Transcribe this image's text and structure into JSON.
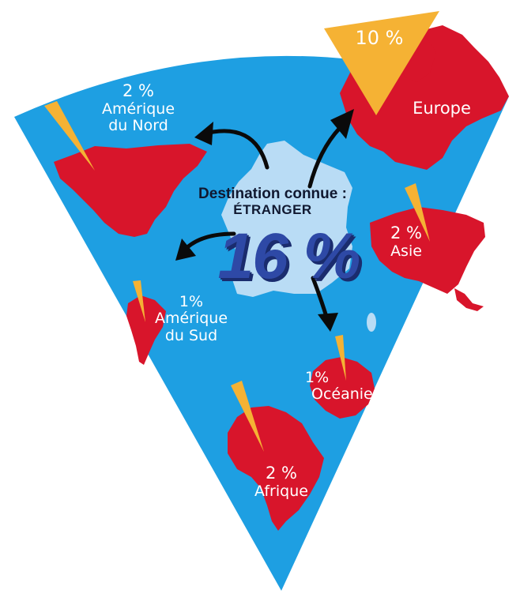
{
  "center": {
    "title": "Destination connue :",
    "subtitle": "ÉTRANGER",
    "value": "16 %"
  },
  "regions": {
    "north_america": {
      "percent": "2 %",
      "name_line1": "Amérique",
      "name_line2": "du Nord"
    },
    "europe": {
      "percent": "10 %",
      "name": "Europe"
    },
    "asia": {
      "percent": "2 %",
      "name": "Asie"
    },
    "south_america": {
      "percent": "1%",
      "name_line1": "Amérique",
      "name_line2": "du Sud"
    },
    "oceania": {
      "percent": "1%",
      "name": "Océanie"
    },
    "africa": {
      "percent": "2 %",
      "name": "Afrique"
    }
  },
  "colors": {
    "sea": "#1e9fe2",
    "land": "#d8152b",
    "france": "#b9dcf5",
    "wedge": "#f5b234",
    "arrow": "#0a0a0a",
    "value": "#2e49a6"
  }
}
